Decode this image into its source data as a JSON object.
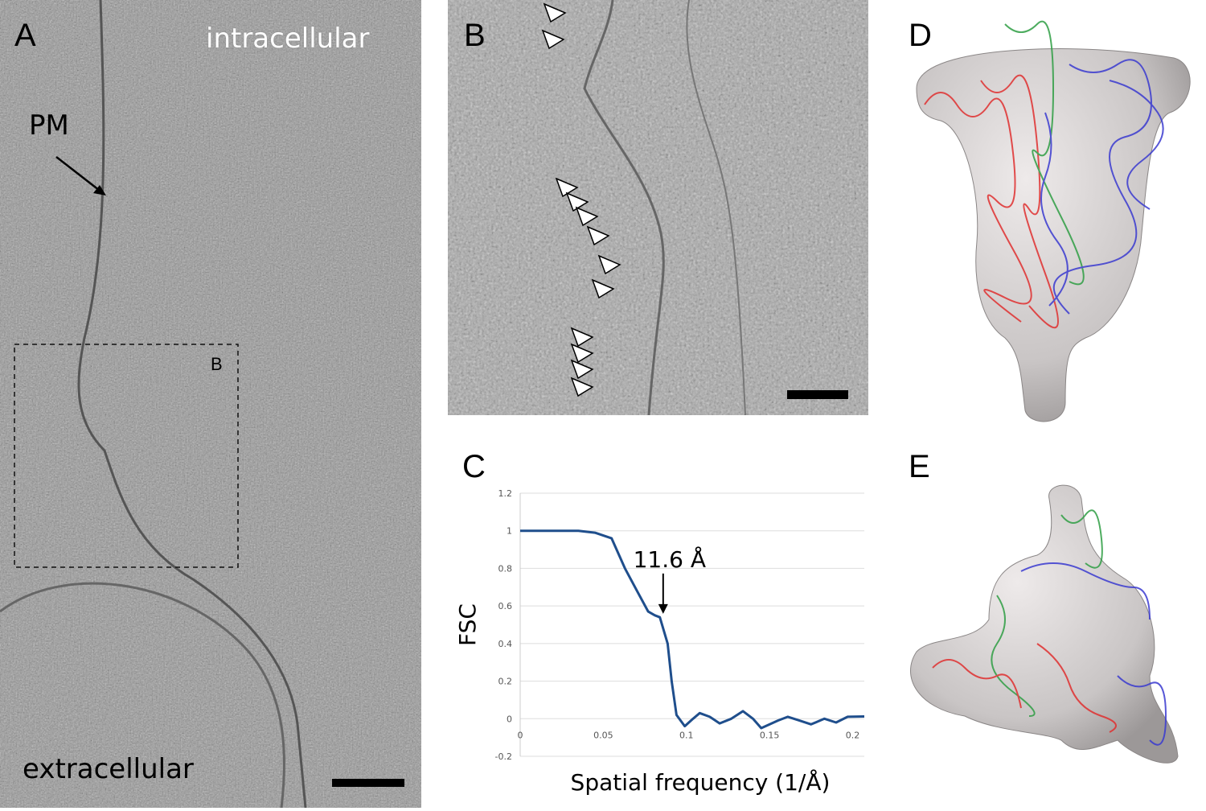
{
  "panels": {
    "a": {
      "label": "A",
      "top_text": "intracellular",
      "pm_label": "PM",
      "bottom_text": "extracellular",
      "box_label": "B"
    },
    "b": {
      "label": "B"
    },
    "c": {
      "label": "C"
    },
    "d": {
      "label": "D"
    },
    "e": {
      "label": "E"
    }
  },
  "model_colors": {
    "chain1": "#e03030",
    "chain2": "#2f9e44",
    "chain3": "#3a3ad0",
    "density": "#c8c4c4"
  },
  "chart_data": {
    "type": "line",
    "title": "",
    "xlabel": "Spatial frequency (1/Å)",
    "ylabel": "FSC",
    "xlim": [
      0,
      0.207
    ],
    "ylim": [
      -0.2,
      1.2
    ],
    "x_ticks": [
      "0",
      "0.05",
      "0.1",
      "0.15",
      "0.2"
    ],
    "y_ticks": [
      "-0.2",
      "0",
      "0.2",
      "0.4",
      "0.6",
      "0.8",
      "1",
      "1.2"
    ],
    "grid": true,
    "line_color": "#1f4e8c",
    "annotation": {
      "text": "11.6 Å",
      "x": 0.086,
      "y": 0.55
    },
    "series": [
      {
        "x": [
          0,
          0.035,
          0.045,
          0.055,
          0.063,
          0.07,
          0.077,
          0.081,
          0.084,
          0.0887,
          0.0911,
          0.094,
          0.099,
          0.104,
          0.108,
          0.114,
          0.12,
          0.127,
          0.134,
          0.14,
          0.145,
          0.155,
          0.161,
          0.168,
          0.175,
          0.183,
          0.19,
          0.197,
          0.207
        ],
        "y": [
          1,
          1,
          0.99,
          0.96,
          0.8,
          0.685,
          0.57,
          0.55,
          0.54,
          0.4,
          0.2,
          0.02,
          -0.04,
          0,
          0.03,
          0.01,
          -0.025,
          0,
          0.04,
          0,
          -0.05,
          -0.01,
          0.01,
          -0.01,
          -0.03,
          0,
          -0.02,
          0.01,
          0.012
        ]
      }
    ]
  }
}
